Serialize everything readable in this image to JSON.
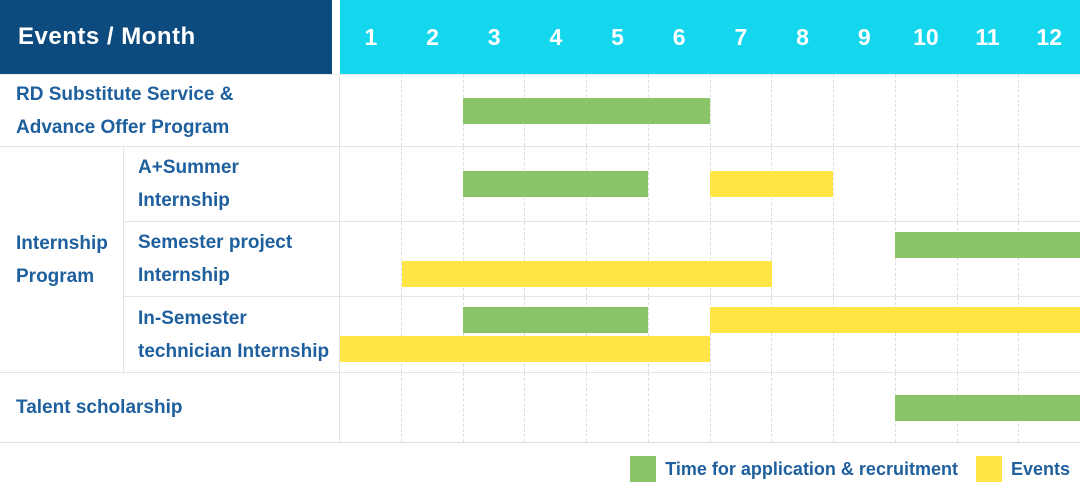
{
  "header": {
    "title": "Events / Month",
    "months": [
      "1",
      "2",
      "3",
      "4",
      "5",
      "6",
      "7",
      "8",
      "9",
      "10",
      "11",
      "12"
    ]
  },
  "colors": {
    "header_bg": "#0d4b7f",
    "months_bg": "#14d7ee",
    "label_text": "#1e5f9e",
    "application": "#8ac468",
    "event": "#ffe645"
  },
  "legend": {
    "items": [
      {
        "key": "application",
        "label": "Time for application & recruitment"
      },
      {
        "key": "event",
        "label": "Events"
      }
    ]
  },
  "chart_data": {
    "type": "bar",
    "subtype": "gantt-month-span",
    "xlabel": "Month",
    "x_ticks": [
      "1",
      "2",
      "3",
      "4",
      "5",
      "6",
      "7",
      "8",
      "9",
      "10",
      "11",
      "12"
    ],
    "x_range": [
      1,
      12
    ],
    "grid": "vertical-dashed-month-lines",
    "legend_position": "bottom-right",
    "series_legend": [
      "Time for application & recruitment",
      "Events"
    ],
    "group_label": "Internship Program",
    "group_label_lines": [
      "Internship",
      "Program"
    ],
    "rows": [
      {
        "group": null,
        "label": "RD Substitute Service & Advance Offer Program",
        "label_lines": [
          "RD Substitute Service &",
          "Advance Offer Program"
        ],
        "lanes": [
          [
            {
              "series": "application",
              "start_month": 3,
              "end_month": 6
            }
          ]
        ]
      },
      {
        "group": "Internship Program",
        "label": "A+Summer Internship",
        "label_lines": [
          "A+Summer",
          "Internship"
        ],
        "lanes": [
          [
            {
              "series": "application",
              "start_month": 3,
              "end_month": 5
            },
            {
              "series": "event",
              "start_month": 7,
              "end_month": 8
            }
          ]
        ]
      },
      {
        "group": "Internship Program",
        "label": "Semester project Internship",
        "label_lines": [
          "Semester project",
          "Internship"
        ],
        "lanes": [
          [
            {
              "series": "application",
              "start_month": 10,
              "end_month": 12
            }
          ],
          [
            {
              "series": "event",
              "start_month": 2,
              "end_month": 7
            }
          ]
        ]
      },
      {
        "group": "Internship Program",
        "label": "In-Semester technician Internship",
        "label_lines": [
          "In-Semester",
          "technician Internship"
        ],
        "lanes": [
          [
            {
              "series": "application",
              "start_month": 3,
              "end_month": 5
            },
            {
              "series": "event",
              "start_month": 7,
              "end_month": 12
            }
          ],
          [
            {
              "series": "event",
              "start_month": 1,
              "end_month": 6
            }
          ]
        ]
      },
      {
        "group": null,
        "label": "Talent scholarship",
        "label_lines": [
          "Talent scholarship"
        ],
        "lanes": [
          [
            {
              "series": "application",
              "start_month": 10,
              "end_month": 12
            }
          ]
        ]
      }
    ]
  }
}
